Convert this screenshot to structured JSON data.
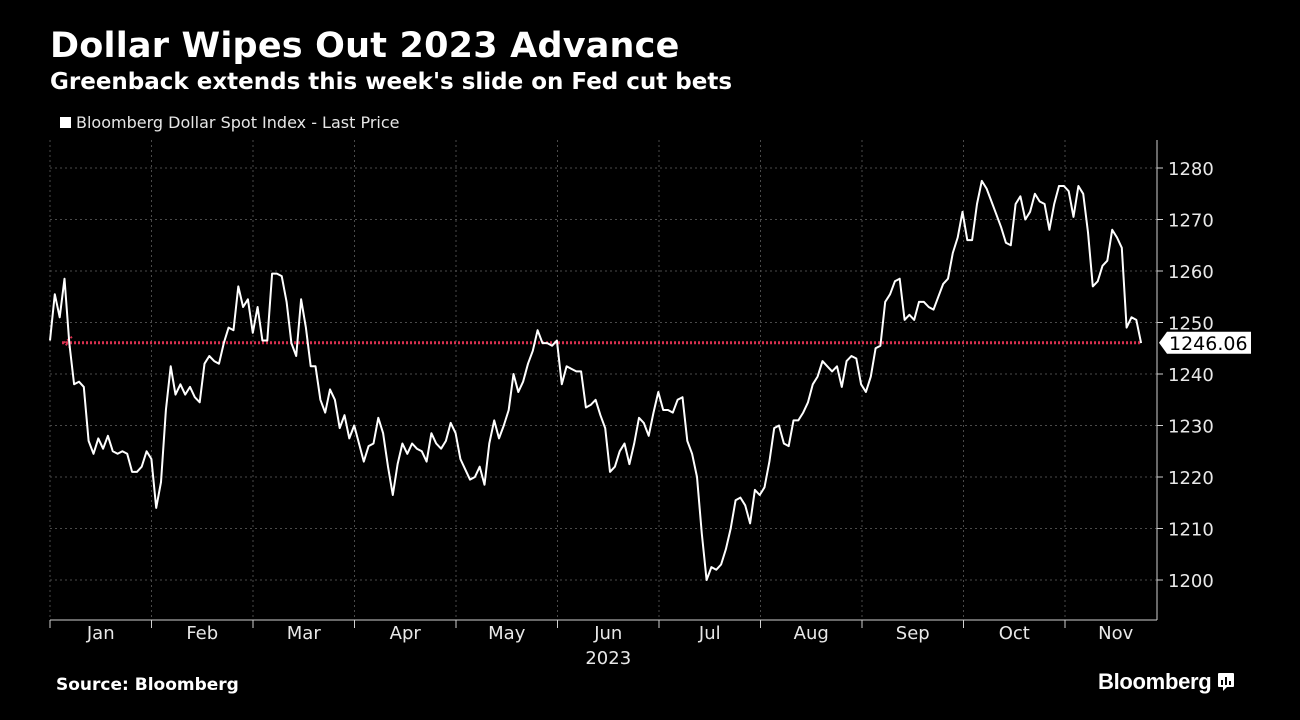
{
  "header": {
    "title": "Dollar Wipes Out 2023 Advance",
    "subtitle": "Greenback extends this week's slide on Fed cut bets"
  },
  "legend": {
    "label": "Bloomberg Dollar Spot Index - Last Price"
  },
  "footer": {
    "source": "Source: Bloomberg",
    "brand": "Bloomberg"
  },
  "colors": {
    "background": "#000000",
    "line": "#ffffff",
    "reference": "#d9304f",
    "grid": "#4a4a4a"
  },
  "chart_data": {
    "type": "line",
    "title": "Dollar Wipes Out 2023 Advance",
    "subtitle": "Greenback extends this week's slide on Fed cut bets",
    "xlabel": "2023",
    "ylabel": "",
    "ylim": [
      1193,
      1285
    ],
    "yticks": [
      1200,
      1210,
      1220,
      1230,
      1240,
      1250,
      1260,
      1270,
      1280
    ],
    "months": [
      "Jan",
      "Feb",
      "Mar",
      "Apr",
      "May",
      "Jun",
      "Jul",
      "Aug",
      "Sep",
      "Oct",
      "Nov"
    ],
    "year_label": "2023",
    "x_start_month": 0,
    "x_end_month": 10.75,
    "last_value_label": "1246.06",
    "reference_line": {
      "value": 1246.06,
      "style": "dotted"
    },
    "grid": true,
    "series": [
      {
        "name": "Bloomberg Dollar Spot Index - Last Price",
        "values": [
          1246.5,
          1255.5,
          1251,
          1258.5,
          1246,
          1238,
          1238.5,
          1237.5,
          1227,
          1224.5,
          1227.5,
          1225.5,
          1228,
          1225,
          1224.5,
          1225,
          1224.5,
          1221,
          1221,
          1222,
          1225,
          1223.5,
          1214,
          1219,
          1233,
          1241.5,
          1236,
          1238,
          1236,
          1237.5,
          1235.5,
          1234.5,
          1242,
          1243.5,
          1242.5,
          1242,
          1246,
          1249,
          1248.5,
          1257,
          1253,
          1254.5,
          1248,
          1253,
          1246.5,
          1246.5,
          1259.5,
          1259.5,
          1259,
          1254,
          1246,
          1243.5,
          1254.5,
          1249,
          1241.5,
          1241.5,
          1235,
          1232.5,
          1237,
          1235,
          1229.5,
          1232,
          1227.5,
          1230,
          1226.5,
          1223,
          1226,
          1226.5,
          1231.5,
          1228.5,
          1222,
          1216.5,
          1222.5,
          1226.5,
          1224.5,
          1226.5,
          1225.5,
          1225,
          1223,
          1228.5,
          1226.5,
          1225.5,
          1227,
          1230.5,
          1228.5,
          1223.5,
          1221.5,
          1219.5,
          1220,
          1222,
          1218.5,
          1226.5,
          1231,
          1227.5,
          1230,
          1233,
          1240,
          1236.5,
          1238.5,
          1242,
          1244.5,
          1248.5,
          1246,
          1246,
          1245.5,
          1246.5,
          1238,
          1241.5,
          1241,
          1240.5,
          1240.5,
          1233.5,
          1234,
          1235,
          1232,
          1229.5,
          1221,
          1222,
          1225,
          1226.5,
          1222.5,
          1226.5,
          1231.5,
          1230.5,
          1228,
          1232.5,
          1236.5,
          1233,
          1233,
          1232.5,
          1235,
          1235.5,
          1227,
          1224.5,
          1220,
          1209,
          1200,
          1202.5,
          1202,
          1203,
          1206,
          1210,
          1215.5,
          1216,
          1214.5,
          1211,
          1217.5,
          1216.5,
          1218,
          1223,
          1229.5,
          1230,
          1226.5,
          1226,
          1231,
          1231,
          1232.5,
          1234.5,
          1238,
          1239.5,
          1242.5,
          1241.5,
          1240.5,
          1241.5,
          1237.5,
          1242.5,
          1243.5,
          1243,
          1238,
          1236.5,
          1239.5,
          1245,
          1245.5,
          1254,
          1255.5,
          1258,
          1258.5,
          1250.5,
          1251.5,
          1250.5,
          1254,
          1254,
          1253,
          1252.5,
          1255,
          1257.5,
          1258.5,
          1263.5,
          1266.5,
          1271.5,
          1266,
          1266,
          1273,
          1277.5,
          1276,
          1273.5,
          1271,
          1268.5,
          1265.5,
          1265,
          1273,
          1274.5,
          1270,
          1271.5,
          1275,
          1273.5,
          1273,
          1268,
          1273,
          1276.5,
          1276.5,
          1275.5,
          1270.5,
          1276.5,
          1275,
          1267.5,
          1257,
          1258,
          1261,
          1262,
          1268,
          1266.5,
          1264.5,
          1249,
          1251,
          1250.5,
          1246
        ]
      }
    ]
  }
}
